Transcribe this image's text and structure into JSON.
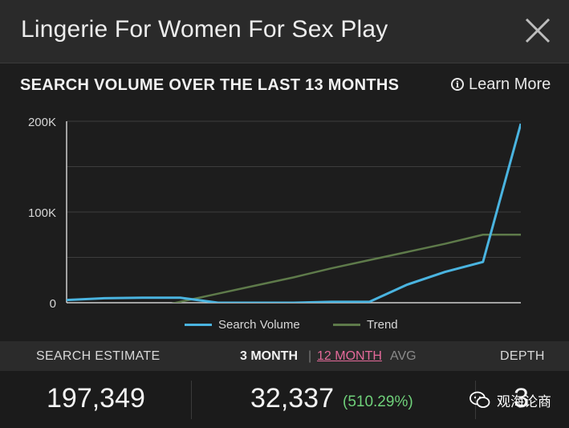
{
  "header": {
    "title": "Lingerie For Women For Sex Play"
  },
  "section": {
    "title": "SEARCH VOLUME OVER THE LAST 13 MONTHS",
    "learn_more": "Learn More",
    "info_glyph": "i"
  },
  "chart_data": {
    "type": "line",
    "x": [
      1,
      2,
      3,
      4,
      5,
      6,
      7,
      8,
      9,
      10,
      11,
      12,
      13
    ],
    "series": [
      {
        "name": "Search Volume",
        "color": "#4ab4e0",
        "values": [
          3000,
          5000,
          5500,
          5500,
          0,
          0,
          0,
          1000,
          1000,
          20000,
          34000,
          45000,
          197349
        ]
      },
      {
        "name": "Trend",
        "color": "#5e7a4a",
        "values": [
          -26000,
          -17000,
          -8000,
          1000,
          10000,
          19000,
          28000,
          38000,
          47000,
          56000,
          65000,
          75000,
          75000
        ]
      }
    ],
    "yticks": [
      "0",
      "100K",
      "200K"
    ],
    "ylim": [
      0,
      200000
    ],
    "grid": true,
    "legend": "bottom-center"
  },
  "stats": {
    "search_estimate_label": "SEARCH ESTIMATE",
    "three_month_label": "3 MONTH",
    "separator": "|",
    "twelve_month_label": "12 MONTH",
    "avg_label": "AVG",
    "depth_label": "DEPTH",
    "search_estimate_value": "197,349",
    "three_month_value": "32,337",
    "three_month_change": "(510.29%)",
    "depth_value": "3"
  },
  "watermark": {
    "text": "观海论商"
  }
}
